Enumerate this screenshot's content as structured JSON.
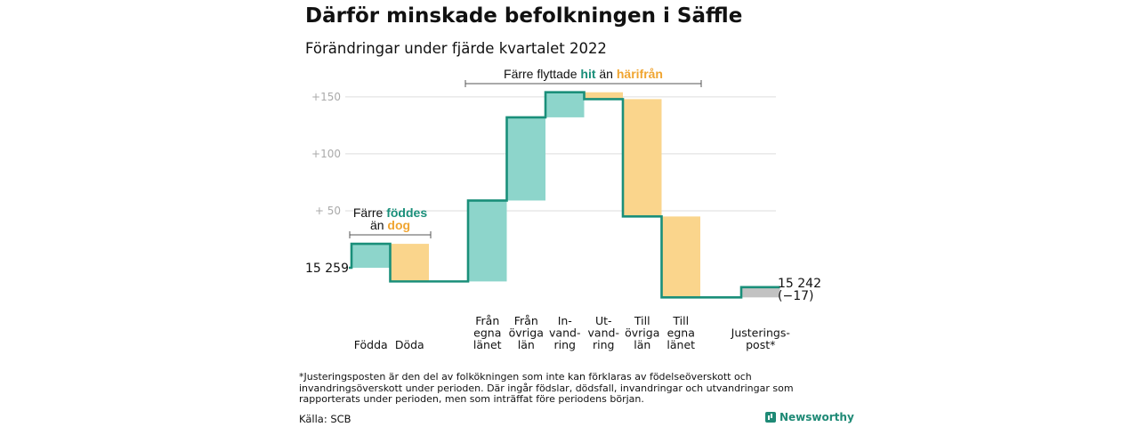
{
  "title": "Därför minskade befolkningen i Säffle",
  "subtitle": "Förändringar under fjärde kvartalet 2022",
  "colors": {
    "inflow": "#8dd5cb",
    "outflow": "#fad58c",
    "adjustment": "#c2c2c2",
    "line": "#1a8f7a",
    "teal_text": "#1a8f7a",
    "orange_text": "#f0a531"
  },
  "annotations": {
    "births_deaths": {
      "line1": "Färre ",
      "hl1": "föddes",
      "line2": "än ",
      "hl2": "dog"
    },
    "migration": {
      "pre": "Färre flyttade ",
      "hl1": "hit",
      "mid": " än ",
      "hl2": "härifrån"
    }
  },
  "chart_data": {
    "type": "waterfall",
    "start_label": "15 259",
    "end_label": "15 242",
    "end_change_label": "(−17)",
    "yticks": [
      "+150",
      "+100",
      "+ 50"
    ],
    "ytick_values": [
      150,
      100,
      50
    ],
    "ylim": [
      -20,
      158
    ],
    "baseline_value": 0,
    "steps": [
      {
        "label": [
          "Födda"
        ],
        "delta": 21,
        "group": 0
      },
      {
        "label": [
          "Döda"
        ],
        "delta": -33,
        "group": 0
      },
      {
        "label": [
          "Från",
          "egna",
          "länet"
        ],
        "delta": 71,
        "group": 1
      },
      {
        "label": [
          "Från",
          "övriga",
          "län"
        ],
        "delta": 73,
        "group": 1
      },
      {
        "label": [
          "In-",
          "vand-",
          "ring"
        ],
        "delta": 22,
        "group": 1
      },
      {
        "label": [
          "Ut-",
          "vand-",
          "ring"
        ],
        "delta": -6,
        "group": 1
      },
      {
        "label": [
          "Till",
          "övriga",
          "län"
        ],
        "delta": -103,
        "group": 1
      },
      {
        "label": [
          "Till",
          "egna",
          "länet"
        ],
        "delta": -71,
        "group": 1
      },
      {
        "label": [
          "Justerings-",
          "post*"
        ],
        "delta": 9,
        "group": 2,
        "adjustment": true
      }
    ]
  },
  "footnote": "*Justeringsposten är den del av folkökningen som inte kan förklaras av födelseöverskott och invandringsöverskott under perioden. Där ingår födslar, dödsfall, invandringar och utvandringar som rapporterats under perioden, men som inträffat före periodens början.",
  "source": "Källa: SCB",
  "brand": "Newsworthy"
}
